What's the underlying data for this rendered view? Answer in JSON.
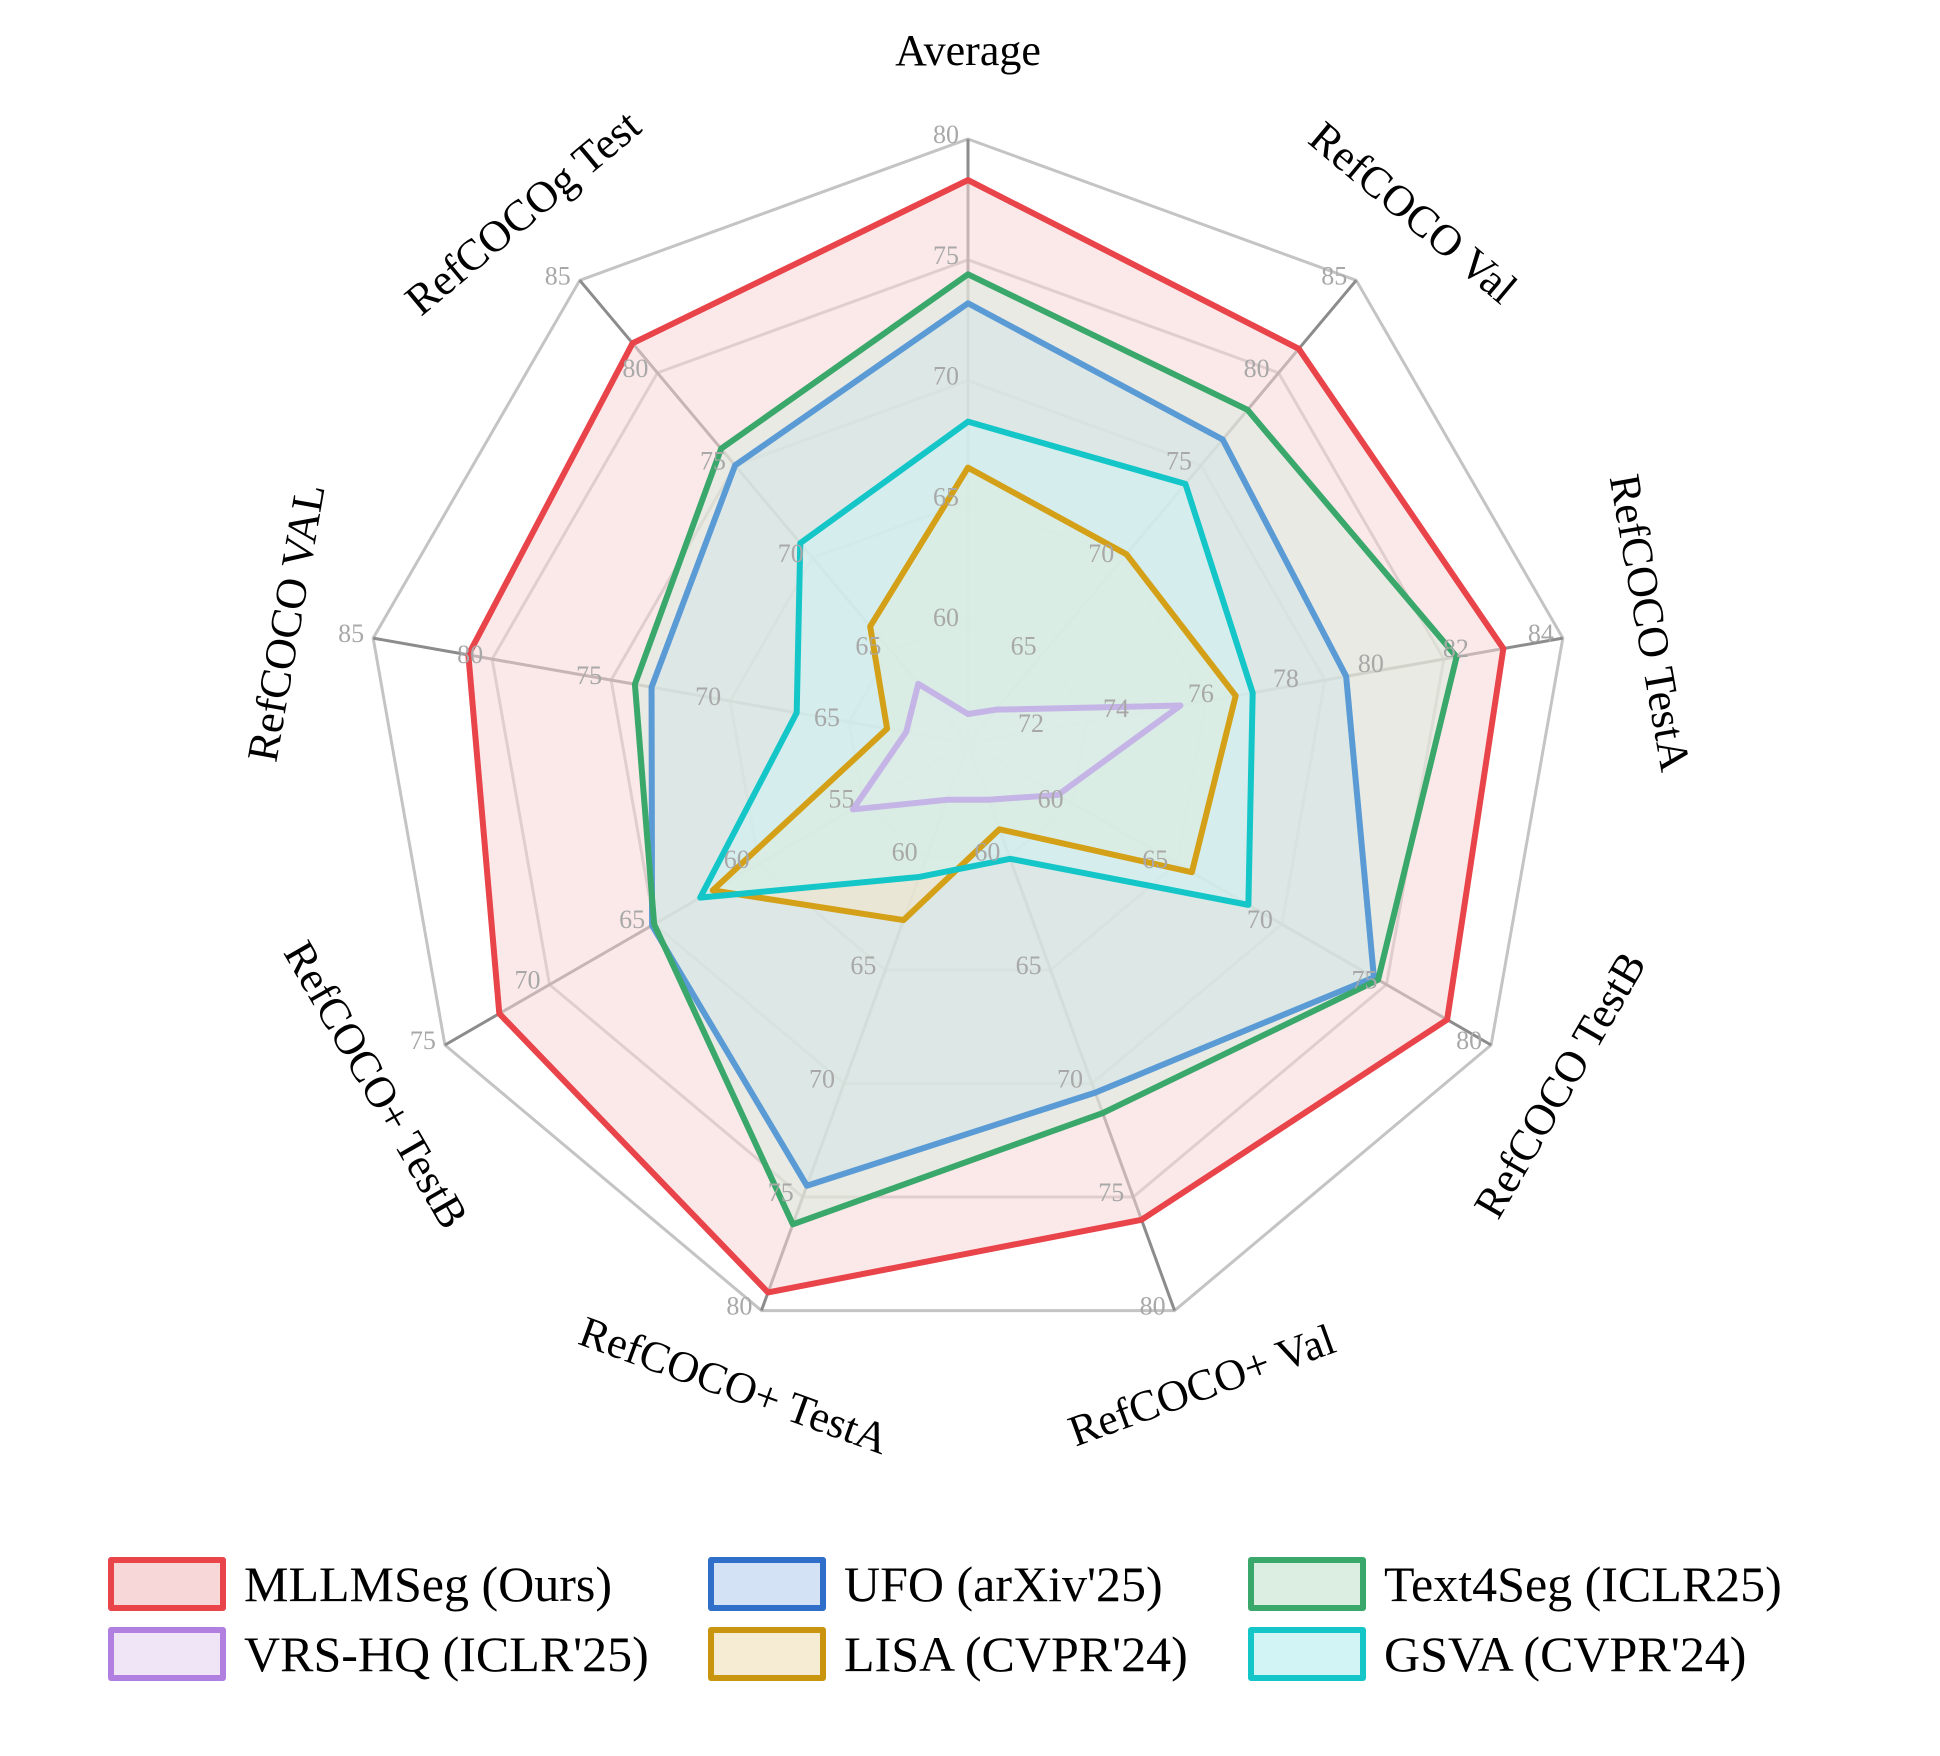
{
  "chart_data": {
    "type": "radar",
    "axes": [
      {
        "label": "Average",
        "ticks": [
          "60",
          "65",
          "70",
          "75",
          "80"
        ],
        "min": 55,
        "max": 80
      },
      {
        "label": "RefCOCO Val",
        "ticks": [
          "65",
          "70",
          "75",
          "80",
          "85"
        ],
        "min": 60,
        "max": 85
      },
      {
        "label": "RefCOCO TestA",
        "ticks": [
          "72",
          "74",
          "76",
          "78",
          "80",
          "82",
          "84"
        ],
        "min": 70,
        "max": 84
      },
      {
        "label": "RefCOCO TestB",
        "ticks": [
          "60",
          "65",
          "70",
          "75",
          "80"
        ],
        "min": 55,
        "max": 80
      },
      {
        "label": "RefCOCO+ Val",
        "ticks": [
          "60",
          "65",
          "70",
          "75",
          "80"
        ],
        "min": 55,
        "max": 80
      },
      {
        "label": "RefCOCO+ TestA",
        "ticks": [
          "60",
          "65",
          "70",
          "75",
          "80"
        ],
        "min": 55,
        "max": 80
      },
      {
        "label": "RefCOCO+ TestB",
        "ticks": [
          "55",
          "60",
          "65",
          "70",
          "75"
        ],
        "min": 50,
        "max": 75
      },
      {
        "label": "RefCOCO VAL",
        "ticks": [
          "65",
          "70",
          "75",
          "80",
          "85"
        ],
        "min": 60,
        "max": 85
      },
      {
        "label": "RefCOCOg Test",
        "ticks": [
          "65",
          "70",
          "75",
          "80",
          "85"
        ],
        "min": 60,
        "max": 85
      }
    ],
    "series": [
      {
        "name": "MLLMSeg (Ours)",
        "color": "#e8444a",
        "fill": "#f8d7d8",
        "values": [
          78.3,
          81.3,
          82.6,
          77.9,
          76.0,
          79.2,
          72.4,
          81.0,
          81.6
        ]
      },
      {
        "name": "UFO (arXiv'25)",
        "color": "#5b9bd5",
        "fill": "#cfdff3",
        "values": [
          73.2,
          76.4,
          78.9,
          74.4,
          70.4,
          74.5,
          65.1,
          73.3,
          75.0
        ]
      },
      {
        "name": "Text4Seg (ICLR25)",
        "color": "#3aa86a",
        "fill": "#d8ebdc",
        "values": [
          74.4,
          78.0,
          81.5,
          74.6,
          71.3,
          76.2,
          65.0,
          74.0,
          75.9
        ]
      },
      {
        "name": "VRS-HQ (ICLR'25)",
        "color": "#c5b5e6",
        "fill": "#ece3f7",
        "values": [
          56.2,
          61.8,
          75.0,
          59.3,
          57.5,
          57.5,
          55.5,
          62.6,
          63.2
        ]
      },
      {
        "name": "LISA (CVPR'24)",
        "color": "#d4a017",
        "fill": "#f3e6c8",
        "values": [
          66.4,
          70.2,
          76.3,
          65.7,
          58.8,
          62.8,
          62.2,
          63.4,
          66.3
        ]
      },
      {
        "name": "GSVA (CVPR'24)",
        "color": "#14c6c8",
        "fill": "#cdf2f3",
        "values": [
          68.3,
          74.0,
          76.7,
          68.4,
          60.1,
          60.9,
          62.8,
          67.2,
          70.8
        ]
      }
    ],
    "legend": "bottom"
  },
  "legend_items": [
    {
      "name": "MLLMSeg (Ours)",
      "border": "#e8444a",
      "fill": "#f8d7d8"
    },
    {
      "name": "UFO (arXiv'25)",
      "border": "#2f6fc9",
      "fill": "#d3e2f5"
    },
    {
      "name": "Text4Seg (ICLR25)",
      "border": "#3aa86a",
      "fill": "#dceee2"
    },
    {
      "name": "VRS-HQ (ICLR'25)",
      "border": "#b07fe0",
      "fill": "#efe5f7"
    },
    {
      "name": "LISA (CVPR'24)",
      "border": "#c9950f",
      "fill": "#f6ecd4"
    },
    {
      "name": "GSVA (CVPR'24)",
      "border": "#14c6c8",
      "fill": "#d3f4f5"
    }
  ]
}
